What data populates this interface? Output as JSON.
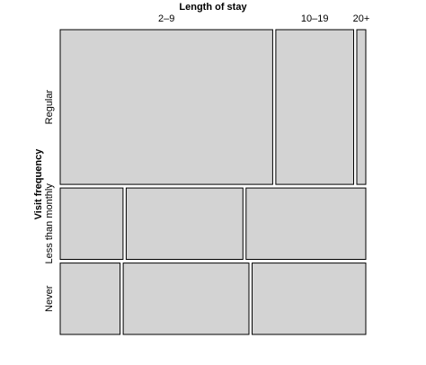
{
  "chart_data": {
    "type": "mosaic",
    "xlabel": "Length of stay",
    "ylabel": "Visit frequency",
    "columns": [
      "2–9",
      "10–19",
      "20+"
    ],
    "rows": [
      "Regular",
      "Less than monthly",
      "Never"
    ],
    "row_proportions": [
      0.52,
      0.24,
      0.24
    ],
    "column_proportions_by_row": [
      [
        0.71,
        0.26,
        0.03
      ],
      [
        0.21,
        0.39,
        0.4
      ],
      [
        0.2,
        0.42,
        0.38
      ]
    ],
    "colors": {
      "tile_fill": "#d3d3d3",
      "tile_border": "#000000"
    }
  }
}
